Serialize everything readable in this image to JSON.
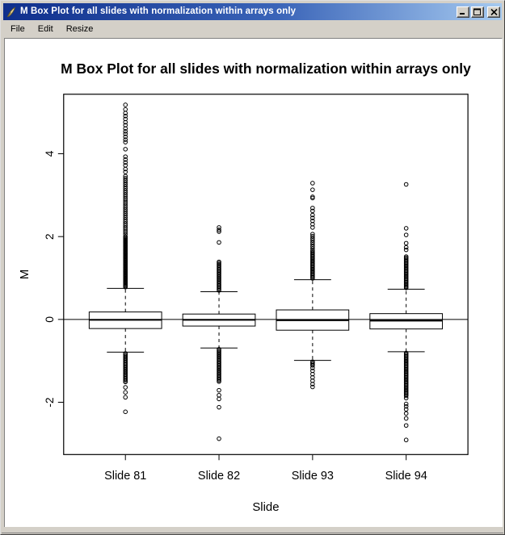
{
  "window": {
    "title": "M Box Plot for all slides with normalization within arrays only",
    "icon": "quill-feather",
    "buttons": {
      "minimize": "minimize",
      "maximize": "maximize",
      "close": "close"
    }
  },
  "menu": {
    "items": [
      {
        "label": "File"
      },
      {
        "label": "Edit"
      },
      {
        "label": "Resize"
      }
    ]
  },
  "colors": {
    "titlebar_left": "#0f2f8c",
    "titlebar_right": "#a6caf0",
    "window_gray": "#d4d0c8",
    "plot_foreground": "#000000",
    "plot_background": "#ffffff"
  },
  "chart_data": {
    "type": "boxplot",
    "title": "M Box Plot for all slides with normalization within arrays only",
    "xlabel": "Slide",
    "ylabel": "M",
    "ylim": [
      -3.26,
      5.44
    ],
    "yticks": [
      -2,
      0,
      2,
      4
    ],
    "grid": false,
    "reference_line_y": 0,
    "categories": [
      "Slide 81",
      "Slide 82",
      "Slide 93",
      "Slide 94"
    ],
    "boxes": [
      {
        "label": "Slide 81",
        "whisker_low": -0.79,
        "q1": -0.22,
        "median": -0.01,
        "q3": 0.18,
        "whisker_high": 0.75,
        "outliers_high_runs": [
          [
            0.78,
            2.02,
            0.025
          ],
          [
            2.06,
            3.5,
            0.05
          ]
        ],
        "outliers_high_points": [
          3.56,
          3.63,
          3.72,
          3.79,
          3.86,
          3.93,
          4.11,
          4.28,
          4.34,
          4.41,
          4.48,
          4.54,
          4.61,
          4.69,
          4.76,
          4.84,
          4.91,
          4.98,
          5.07,
          5.18
        ],
        "outliers_low_runs": [
          [
            -0.82,
            -1.52,
            0.03
          ]
        ],
        "outliers_low_points": [
          -1.64,
          -1.76,
          -1.88,
          -2.23
        ]
      },
      {
        "label": "Slide 82",
        "whisker_low": -0.69,
        "q1": -0.16,
        "median": -0.01,
        "q3": 0.13,
        "whisker_high": 0.67,
        "outliers_high_runs": [
          [
            0.7,
            1.41,
            0.03
          ]
        ],
        "outliers_high_points": [
          1.86,
          2.12,
          2.16,
          2.22
        ],
        "outliers_low_runs": [
          [
            -0.72,
            -1.51,
            0.03
          ]
        ],
        "outliers_low_points": [
          -1.71,
          -1.83,
          -1.92,
          -2.12,
          -2.88
        ]
      },
      {
        "label": "Slide 93",
        "whisker_low": -0.99,
        "q1": -0.26,
        "median": -0.02,
        "q3": 0.23,
        "whisker_high": 0.96,
        "outliers_high_runs": [
          [
            0.99,
            1.67,
            0.028
          ],
          [
            1.71,
            2.1,
            0.05
          ]
        ],
        "outliers_high_points": [
          2.22,
          2.3,
          2.38,
          2.45,
          2.52,
          2.62,
          2.69,
          2.93,
          2.96,
          3.13,
          3.29
        ],
        "outliers_low_runs": [
          [
            -1.02,
            -1.13,
            0.03
          ]
        ],
        "outliers_low_points": [
          -1.17,
          -1.24,
          -1.32,
          -1.4,
          -1.48,
          -1.56,
          -1.63
        ]
      },
      {
        "label": "Slide 94",
        "whisker_low": -0.78,
        "q1": -0.23,
        "median": -0.03,
        "q3": 0.14,
        "whisker_high": 0.73,
        "outliers_high_runs": [
          [
            0.76,
            1.52,
            0.028
          ]
        ],
        "outliers_high_points": [
          1.68,
          1.74,
          1.84,
          2.04,
          2.2,
          3.26
        ],
        "outliers_low_runs": [
          [
            -0.81,
            -1.86,
            0.028
          ]
        ],
        "outliers_low_points": [
          -1.9,
          -2.04,
          -2.1,
          -2.17,
          -2.27,
          -2.39,
          -2.56,
          -2.91
        ]
      }
    ]
  }
}
